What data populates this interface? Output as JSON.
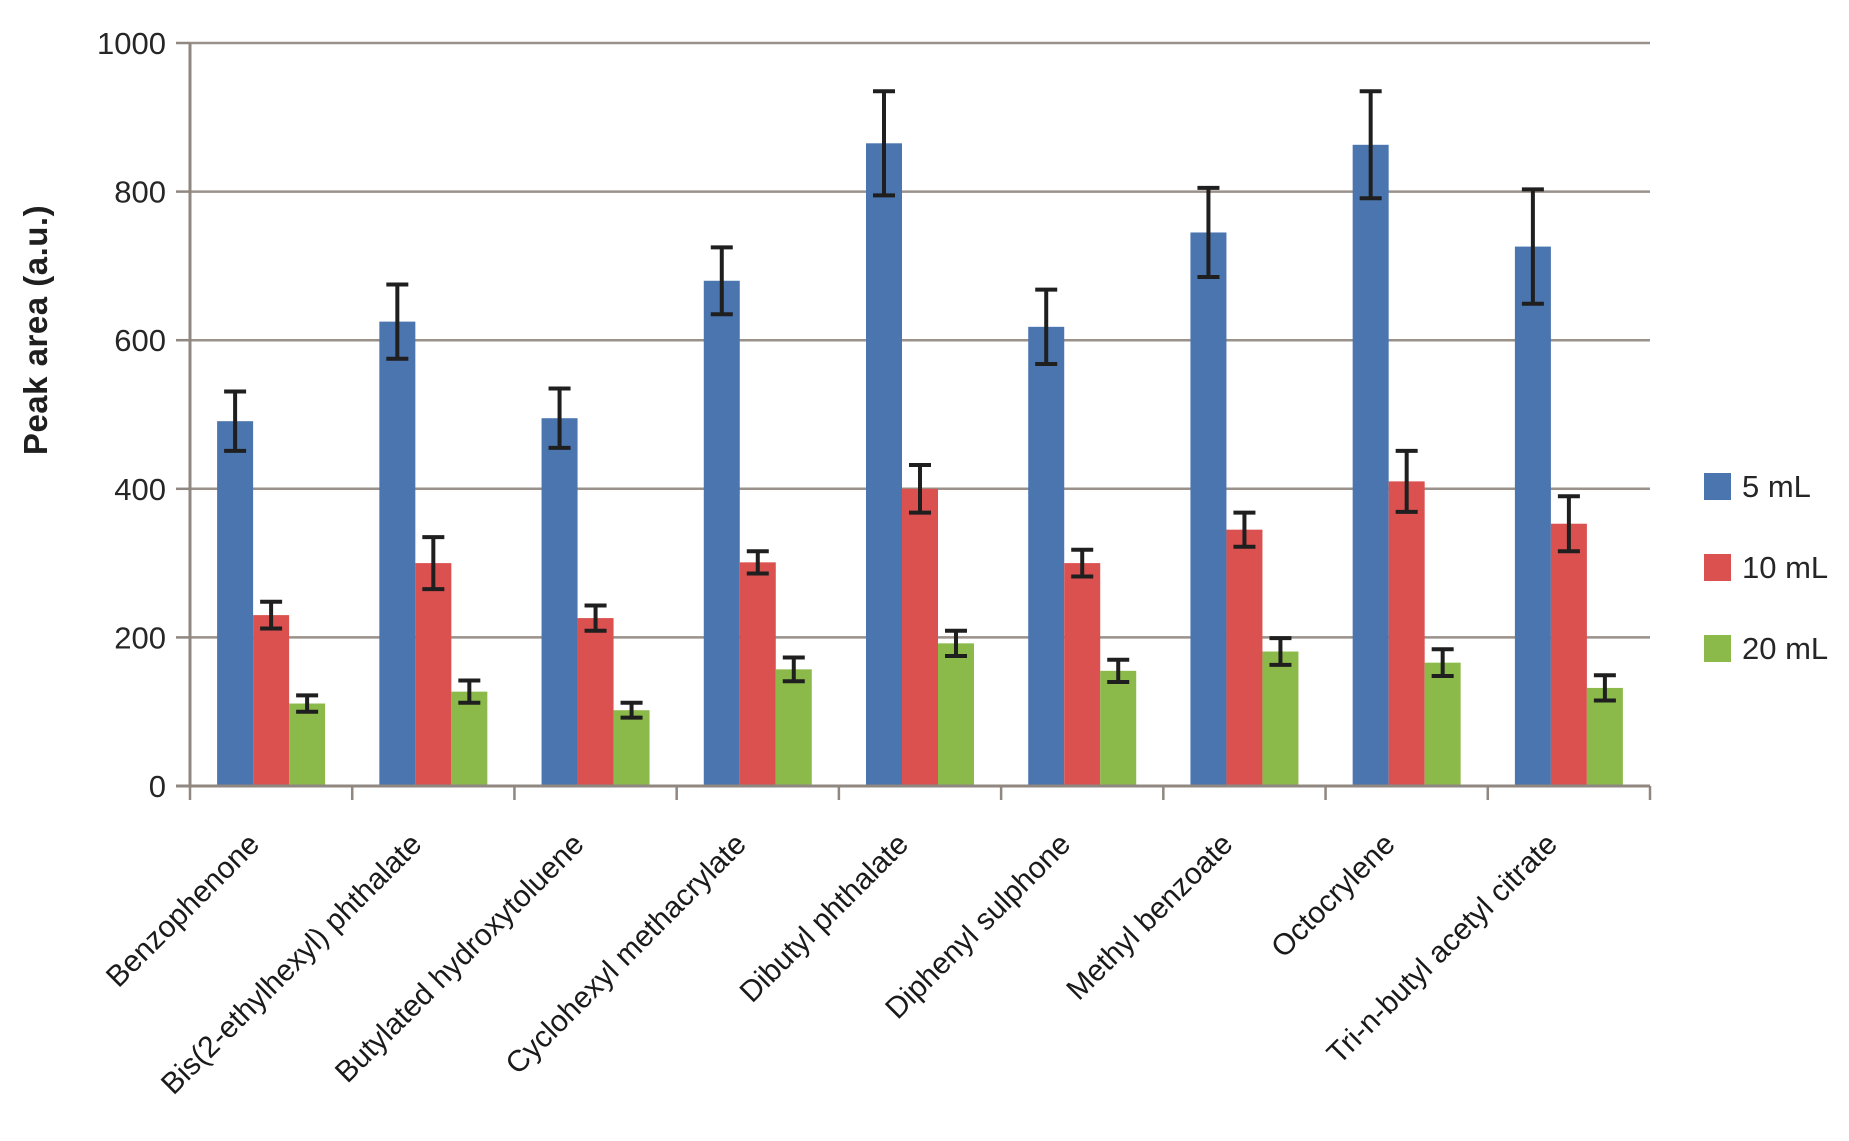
{
  "chart_data": {
    "type": "bar",
    "title": "",
    "xlabel": "",
    "ylabel": "Peak area (a.u.)",
    "ylim": [
      0,
      1000
    ],
    "yticks": [
      0,
      200,
      400,
      600,
      800,
      1000
    ],
    "grid": true,
    "legend_position": "right",
    "categories": [
      "Benzophenone",
      "Bis(2-ethylhexyl) phthalate",
      "Butylated hydroxytoluene",
      "Cyclohexyl methacrylate",
      "Dibutyl phthalate",
      "Diphenyl sulphone",
      "Methyl benzoate",
      "Octocrylene",
      "Tri-n-butyl acetyl citrate"
    ],
    "series": [
      {
        "name": "5 mL",
        "color": "#4A75AE",
        "values": [
          491,
          625,
          495,
          680,
          865,
          618,
          745,
          863,
          726
        ],
        "errors": [
          40,
          50,
          40,
          45,
          70,
          50,
          60,
          72,
          77
        ]
      },
      {
        "name": "10 mL",
        "color": "#DA5150",
        "values": [
          230,
          300,
          226,
          301,
          400,
          300,
          345,
          410,
          353
        ],
        "errors": [
          18,
          35,
          17,
          15,
          32,
          18,
          23,
          41,
          37
        ]
      },
      {
        "name": "20 mL",
        "color": "#8BBA4A",
        "values": [
          111,
          127,
          102,
          157,
          192,
          155,
          181,
          166,
          132
        ],
        "errors": [
          11,
          15,
          10,
          16,
          17,
          15,
          18,
          18,
          17
        ]
      }
    ]
  },
  "style_colors": {
    "gridline": "#99918A",
    "axis": "#8F8780",
    "error_bar": "#1F1F1F",
    "tick_text": "#262626"
  }
}
